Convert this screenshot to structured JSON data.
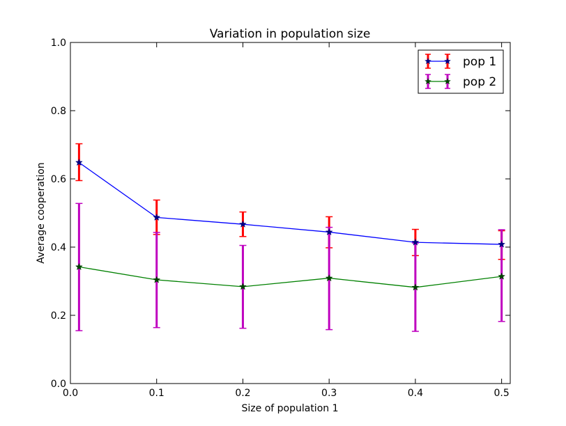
{
  "chart_data": {
    "type": "line",
    "title": "Variation in population size",
    "xlabel": "Size of population 1",
    "ylabel": "Average cooperation",
    "xlim": [
      0.0,
      0.51
    ],
    "ylim": [
      0.0,
      1.0
    ],
    "xticks": [
      "0.0",
      "0.1",
      "0.2",
      "0.3",
      "0.4",
      "0.5"
    ],
    "yticks": [
      "0.0",
      "0.2",
      "0.4",
      "0.6",
      "0.8",
      "1.0"
    ],
    "x": [
      0.01,
      0.1,
      0.2,
      0.3,
      0.4,
      0.5
    ],
    "grid": false,
    "legend_position": "top-right",
    "series": [
      {
        "name": "pop 1",
        "values": [
          0.648,
          0.487,
          0.467,
          0.444,
          0.414,
          0.408
        ],
        "err_low": [
          0.595,
          0.437,
          0.431,
          0.398,
          0.375,
          0.364
        ],
        "err_high": [
          0.703,
          0.538,
          0.503,
          0.489,
          0.452,
          0.448
        ],
        "line_color": "#0000ff",
        "marker_color": "#000080",
        "err_color": "#ff0000"
      },
      {
        "name": "pop 2",
        "values": [
          0.342,
          0.304,
          0.284,
          0.309,
          0.282,
          0.314
        ],
        "err_low": [
          0.155,
          0.164,
          0.162,
          0.158,
          0.153,
          0.182
        ],
        "err_high": [
          0.528,
          0.443,
          0.405,
          0.458,
          0.412,
          0.451
        ],
        "line_color": "#008000",
        "marker_color": "#004000",
        "err_color": "#bf00bf"
      }
    ]
  }
}
